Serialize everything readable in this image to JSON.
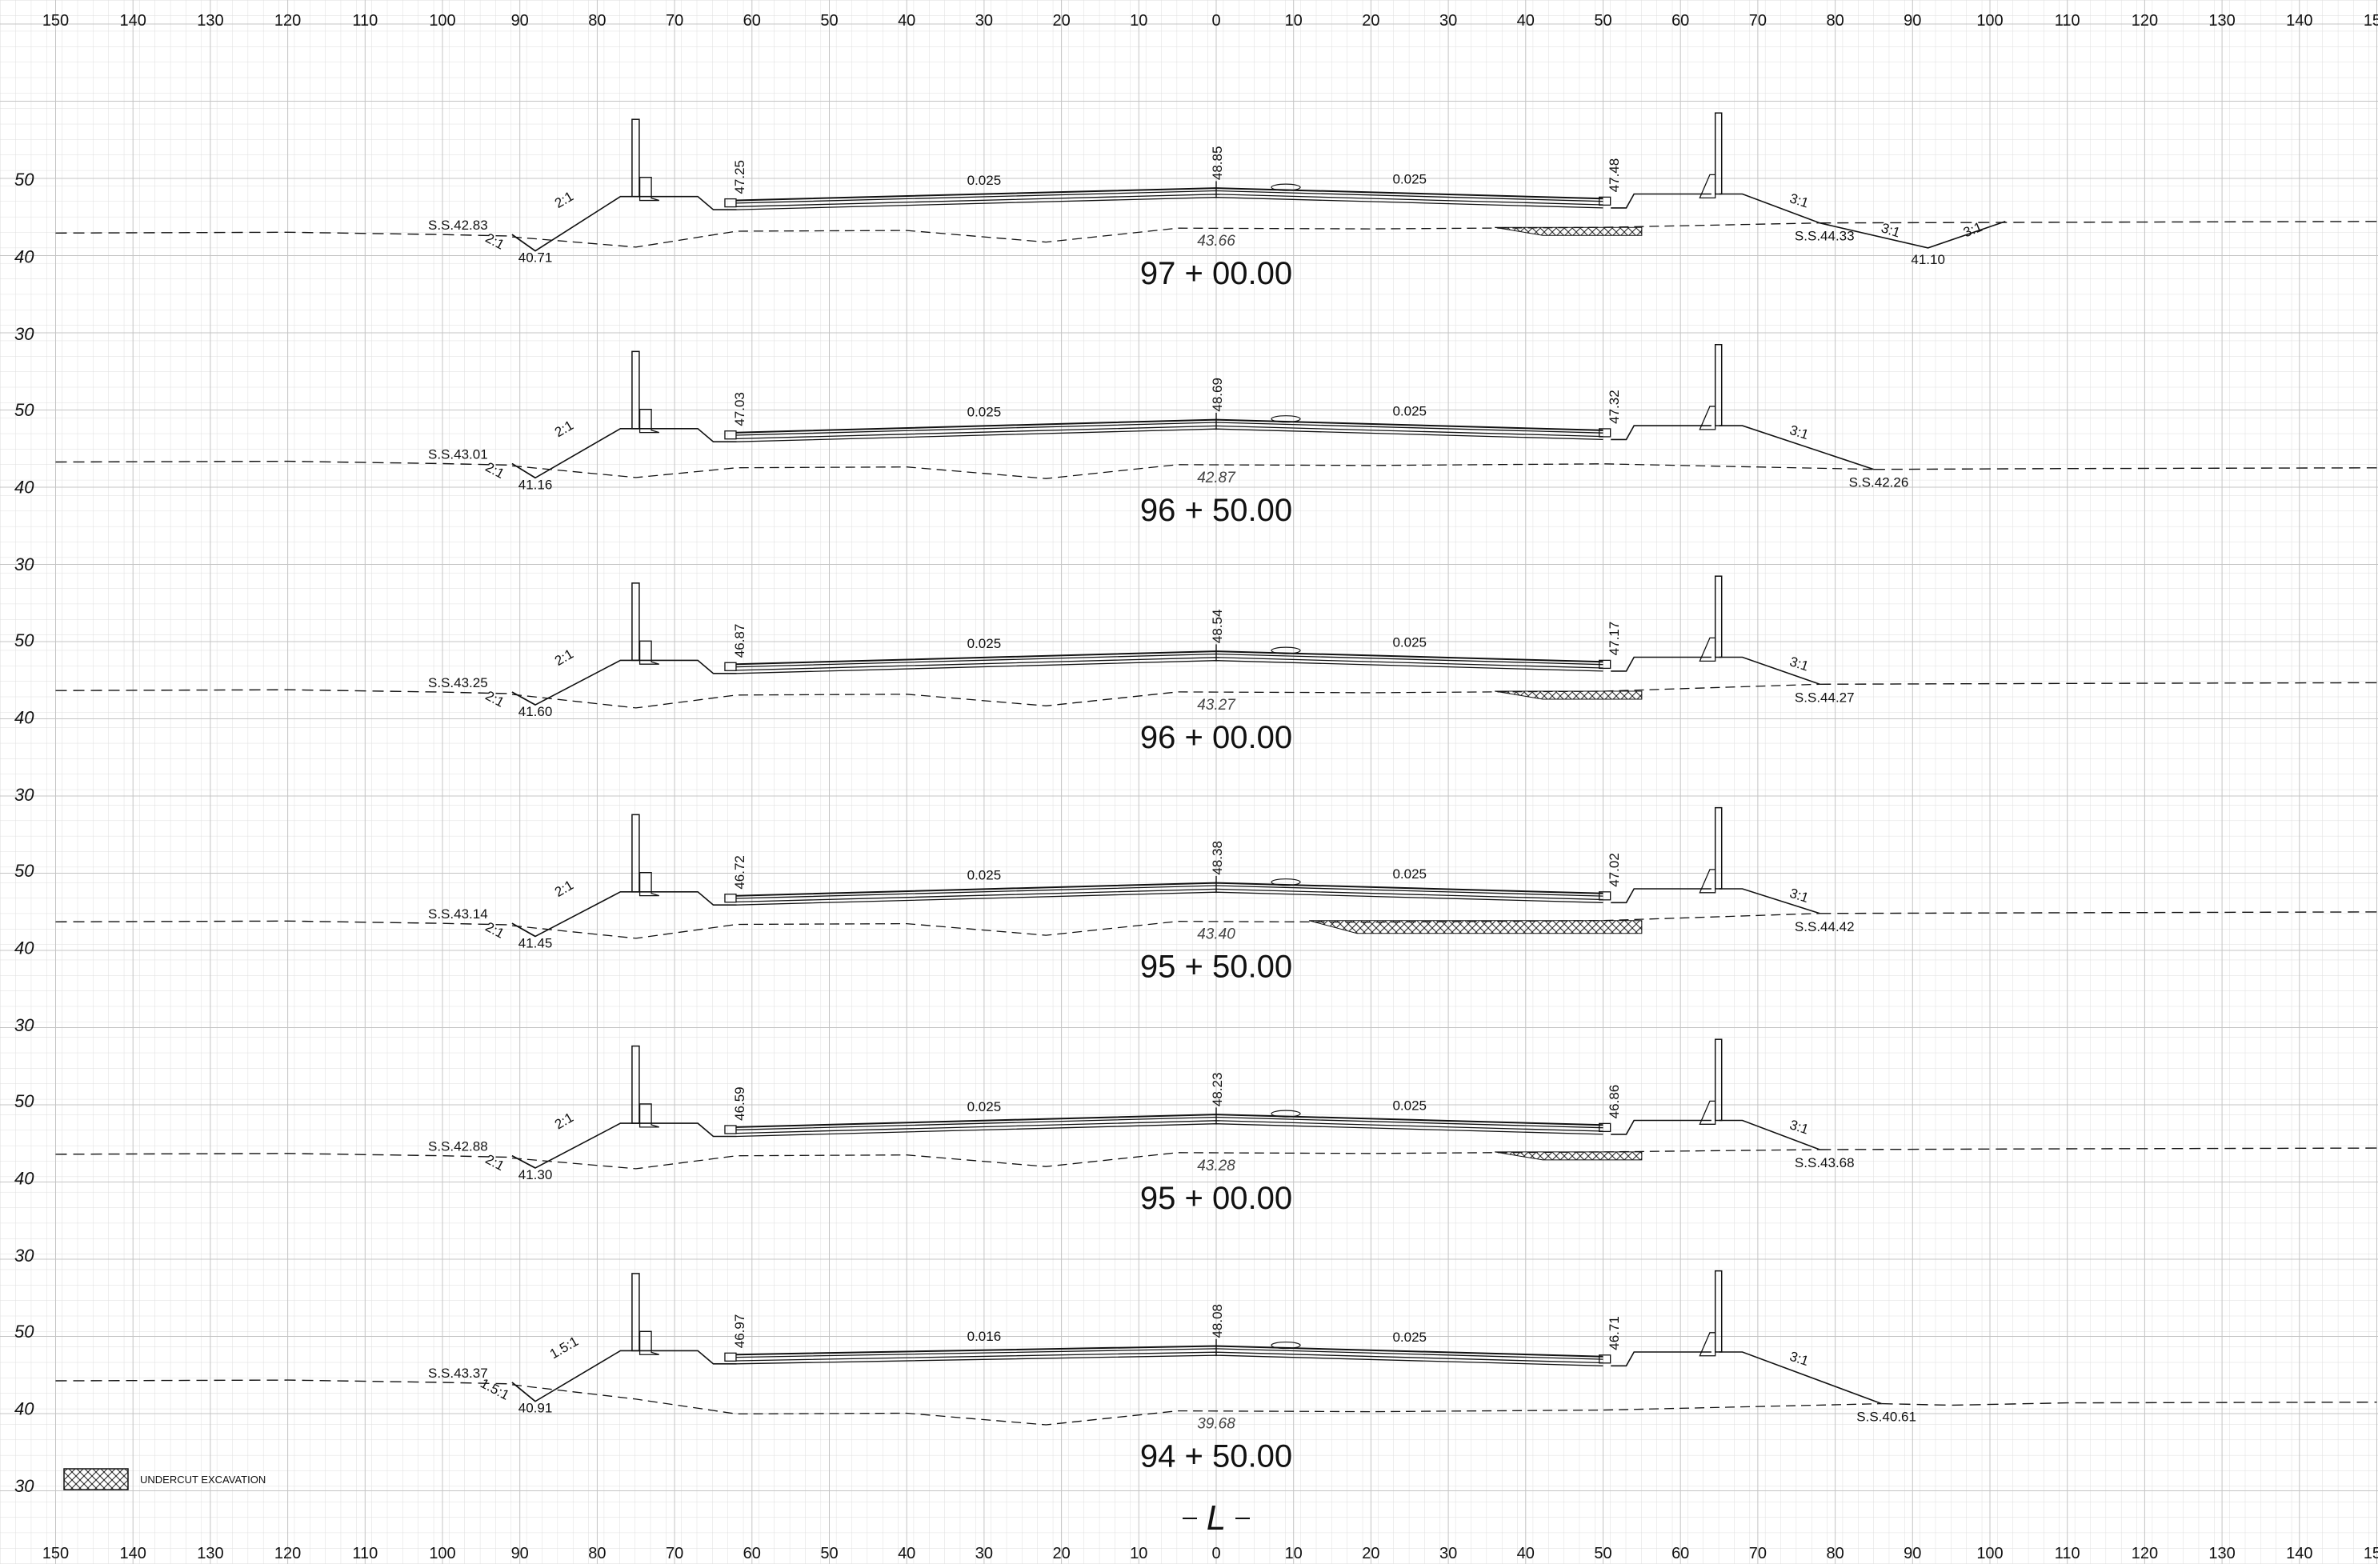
{
  "x_axis": {
    "ticks": [
      "150",
      "140",
      "130",
      "120",
      "110",
      "100",
      "90",
      "80",
      "70",
      "60",
      "50",
      "40",
      "30",
      "20",
      "10",
      "0",
      "10",
      "20",
      "30",
      "40",
      "50",
      "60",
      "70",
      "80",
      "90",
      "100",
      "110",
      "120",
      "130",
      "140",
      "150"
    ]
  },
  "elevation_ticks": [
    "50",
    "40",
    "30"
  ],
  "sections": [
    {
      "station": "97+00.00",
      "left_slope_label": "S.S.42.83",
      "left_ditch_bottom": "40.71",
      "left_fore_slope": "2:1",
      "left_back_slope": "2:1",
      "left_gutter_elev": "47.25",
      "left_cross_slope": "0.025",
      "crown_elev": "48.85",
      "right_cross_slope": "0.025",
      "right_gutter_elev": "47.48",
      "right_fore_slope": "3:1",
      "right_slope_label": "S.S.44.33",
      "right_ditch_bottom": "41.10",
      "right_ditch_slope_a": "3:1",
      "right_ditch_slope_b": "3:1",
      "subgrade_elev": "43.66",
      "has_undercut": true
    },
    {
      "station": "96+50.00",
      "left_slope_label": "S.S.43.01",
      "left_ditch_bottom": "41.16",
      "left_fore_slope": "2:1",
      "left_back_slope": "2:1",
      "left_gutter_elev": "47.03",
      "left_cross_slope": "0.025",
      "crown_elev": "48.69",
      "right_cross_slope": "0.025",
      "right_gutter_elev": "47.32",
      "right_fore_slope": "3:1",
      "right_slope_label": "S.S.42.26",
      "subgrade_elev": "42.87",
      "has_undercut": false
    },
    {
      "station": "96+00.00",
      "left_slope_label": "S.S.43.25",
      "left_ditch_bottom": "41.60",
      "left_fore_slope": "2:1",
      "left_back_slope": "2:1",
      "left_gutter_elev": "46.87",
      "left_cross_slope": "0.025",
      "crown_elev": "48.54",
      "right_cross_slope": "0.025",
      "right_gutter_elev": "47.17",
      "right_fore_slope": "3:1",
      "right_slope_label": "S.S.44.27",
      "subgrade_elev": "43.27",
      "has_undercut": true
    },
    {
      "station": "95+50.00",
      "left_slope_label": "S.S.43.14",
      "left_ditch_bottom": "41.45",
      "left_fore_slope": "2:1",
      "left_back_slope": "2:1",
      "left_gutter_elev": "46.72",
      "left_cross_slope": "0.025",
      "crown_elev": "48.38",
      "right_cross_slope": "0.025",
      "right_gutter_elev": "47.02",
      "right_fore_slope": "3:1",
      "right_slope_label": "S.S.44.42",
      "subgrade_elev": "43.40",
      "has_undercut": true
    },
    {
      "station": "95+00.00",
      "left_slope_label": "S.S.42.88",
      "left_ditch_bottom": "41.30",
      "left_fore_slope": "2:1",
      "left_back_slope": "2:1",
      "left_gutter_elev": "46.59",
      "left_cross_slope": "0.025",
      "crown_elev": "48.23",
      "right_cross_slope": "0.025",
      "right_gutter_elev": "46.86",
      "right_fore_slope": "3:1",
      "right_slope_label": "S.S.43.68",
      "subgrade_elev": "43.28",
      "has_undercut": true
    },
    {
      "station": "94+50.00",
      "left_slope_label": "S.S.43.37",
      "left_ditch_bottom": "40.91",
      "left_fore_slope": "1.5:1",
      "left_back_slope": "1.5:1",
      "left_gutter_elev": "46.97",
      "left_cross_slope": "0.016",
      "crown_elev": "48.08",
      "right_cross_slope": "0.025",
      "right_gutter_elev": "46.71",
      "right_fore_slope": "3:1",
      "right_slope_label": "S.S.40.61",
      "subgrade_elev": "39.68",
      "has_undercut": false
    }
  ],
  "legend": {
    "label": "UNDERCUT EXCAVATION"
  },
  "centerline_symbol": "L",
  "colors": {
    "grid_minor": "#dcdcdc",
    "grid_major": "#b8b8b8",
    "ink": "#111111"
  }
}
